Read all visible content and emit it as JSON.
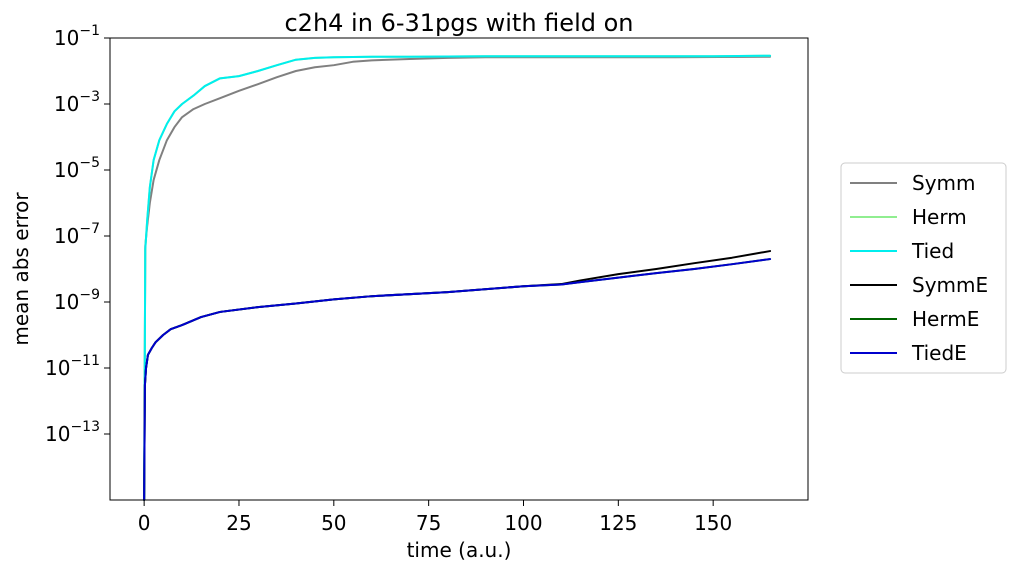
{
  "chart_data": {
    "type": "line",
    "title": "c2h4 in 6-31pgs with field on",
    "xlabel": "time (a.u.)",
    "ylabel": "mean abs error",
    "xlim": [
      -9,
      175
    ],
    "ylim": [
      1e-15,
      0.1
    ],
    "yscale": "log",
    "grid": false,
    "legend_position": "outside-right",
    "xticks": [
      0,
      25,
      50,
      75,
      100,
      125,
      150
    ],
    "yticks": [
      {
        "value": 1e-13,
        "base": "10",
        "exp": "−13"
      },
      {
        "value": 1e-11,
        "base": "10",
        "exp": "−11"
      },
      {
        "value": 1e-09,
        "base": "10",
        "exp": "−9"
      },
      {
        "value": 1e-07,
        "base": "10",
        "exp": "−7"
      },
      {
        "value": 1e-05,
        "base": "10",
        "exp": "−5"
      },
      {
        "value": 0.001,
        "base": "10",
        "exp": "−3"
      },
      {
        "value": 0.1,
        "base": "10",
        "exp": "−1"
      }
    ],
    "series": [
      {
        "name": "Symm",
        "color": "#808080",
        "x": [
          0,
          0.3,
          0.8,
          1.5,
          2.5,
          4,
          6,
          8,
          10,
          13,
          16,
          20,
          25,
          30,
          35,
          40,
          45,
          50,
          55,
          60,
          70,
          80,
          90,
          100,
          120,
          140,
          165
        ],
        "y": [
          1e-15,
          5e-08,
          2e-07,
          1e-06,
          5e-06,
          2e-05,
          8e-05,
          0.0002,
          0.0004,
          0.0007,
          0.001,
          0.0015,
          0.0025,
          0.004,
          0.0065,
          0.01,
          0.013,
          0.015,
          0.019,
          0.021,
          0.023,
          0.025,
          0.026,
          0.026,
          0.026,
          0.026,
          0.027
        ]
      },
      {
        "name": "Herm",
        "color": "#90ee90",
        "x": [
          0,
          0.3,
          0.8,
          1.5,
          2.5,
          4,
          6,
          8,
          10,
          13,
          16,
          20,
          25,
          30,
          35,
          40,
          45,
          50,
          60,
          70,
          90,
          110,
          130,
          150,
          165
        ],
        "y": [
          1e-15,
          4e-08,
          3e-07,
          3e-06,
          2e-05,
          8e-05,
          0.00025,
          0.0006,
          0.001,
          0.0018,
          0.0035,
          0.006,
          0.007,
          0.01,
          0.015,
          0.022,
          0.025,
          0.026,
          0.027,
          0.027,
          0.028,
          0.028,
          0.028,
          0.028,
          0.029
        ]
      },
      {
        "name": "Tied",
        "color": "#00eeee",
        "x": [
          0,
          0.3,
          0.8,
          1.5,
          2.5,
          4,
          6,
          8,
          10,
          13,
          16,
          20,
          25,
          30,
          35,
          40,
          45,
          50,
          60,
          70,
          90,
          110,
          130,
          150,
          165
        ],
        "y": [
          1e-15,
          4e-08,
          3e-07,
          3e-06,
          2e-05,
          8e-05,
          0.00025,
          0.0006,
          0.001,
          0.0018,
          0.0035,
          0.006,
          0.007,
          0.01,
          0.015,
          0.022,
          0.025,
          0.026,
          0.027,
          0.027,
          0.028,
          0.028,
          0.028,
          0.028,
          0.029
        ]
      },
      {
        "name": "SymmE",
        "color": "#000000",
        "x": [
          0,
          0.2,
          0.5,
          1,
          2,
          3,
          5,
          7,
          10,
          15,
          20,
          30,
          40,
          50,
          60,
          80,
          100,
          110,
          115,
          125,
          135,
          145,
          155,
          165
        ],
        "y": [
          1e-15,
          3e-12,
          1e-11,
          2.5e-11,
          4e-11,
          6e-11,
          1e-10,
          1.5e-10,
          2e-10,
          3.5e-10,
          5e-10,
          7e-10,
          9e-10,
          1.2e-09,
          1.5e-09,
          2e-09,
          3e-09,
          3.5e-09,
          4.5e-09,
          7e-09,
          1e-08,
          1.5e-08,
          2.2e-08,
          3.5e-08
        ]
      },
      {
        "name": "HermE",
        "color": "#006400",
        "x": [
          0,
          0.2,
          0.5,
          1,
          2,
          3,
          5,
          7,
          10,
          15,
          20,
          30,
          40,
          50,
          60,
          80,
          100,
          110,
          115,
          125,
          135,
          145,
          155,
          165
        ],
        "y": [
          1e-15,
          3e-12,
          1e-11,
          2.5e-11,
          4e-11,
          6e-11,
          1e-10,
          1.5e-10,
          2e-10,
          3.5e-10,
          5e-10,
          7e-10,
          9e-10,
          1.2e-09,
          1.5e-09,
          2e-09,
          3e-09,
          3.4e-09,
          4e-09,
          5.5e-09,
          7.5e-09,
          1e-08,
          1.4e-08,
          2e-08
        ]
      },
      {
        "name": "TiedE",
        "color": "#0000cd",
        "x": [
          0,
          0.2,
          0.5,
          1,
          2,
          3,
          5,
          7,
          10,
          15,
          20,
          30,
          40,
          50,
          60,
          80,
          100,
          110,
          115,
          125,
          135,
          145,
          155,
          165
        ],
        "y": [
          1e-15,
          3e-12,
          1e-11,
          2.5e-11,
          4e-11,
          6e-11,
          1e-10,
          1.5e-10,
          2e-10,
          3.5e-10,
          5e-10,
          7e-10,
          9e-10,
          1.2e-09,
          1.5e-09,
          2e-09,
          3e-09,
          3.4e-09,
          4e-09,
          5.5e-09,
          7.5e-09,
          1e-08,
          1.4e-08,
          2e-08
        ]
      }
    ]
  }
}
